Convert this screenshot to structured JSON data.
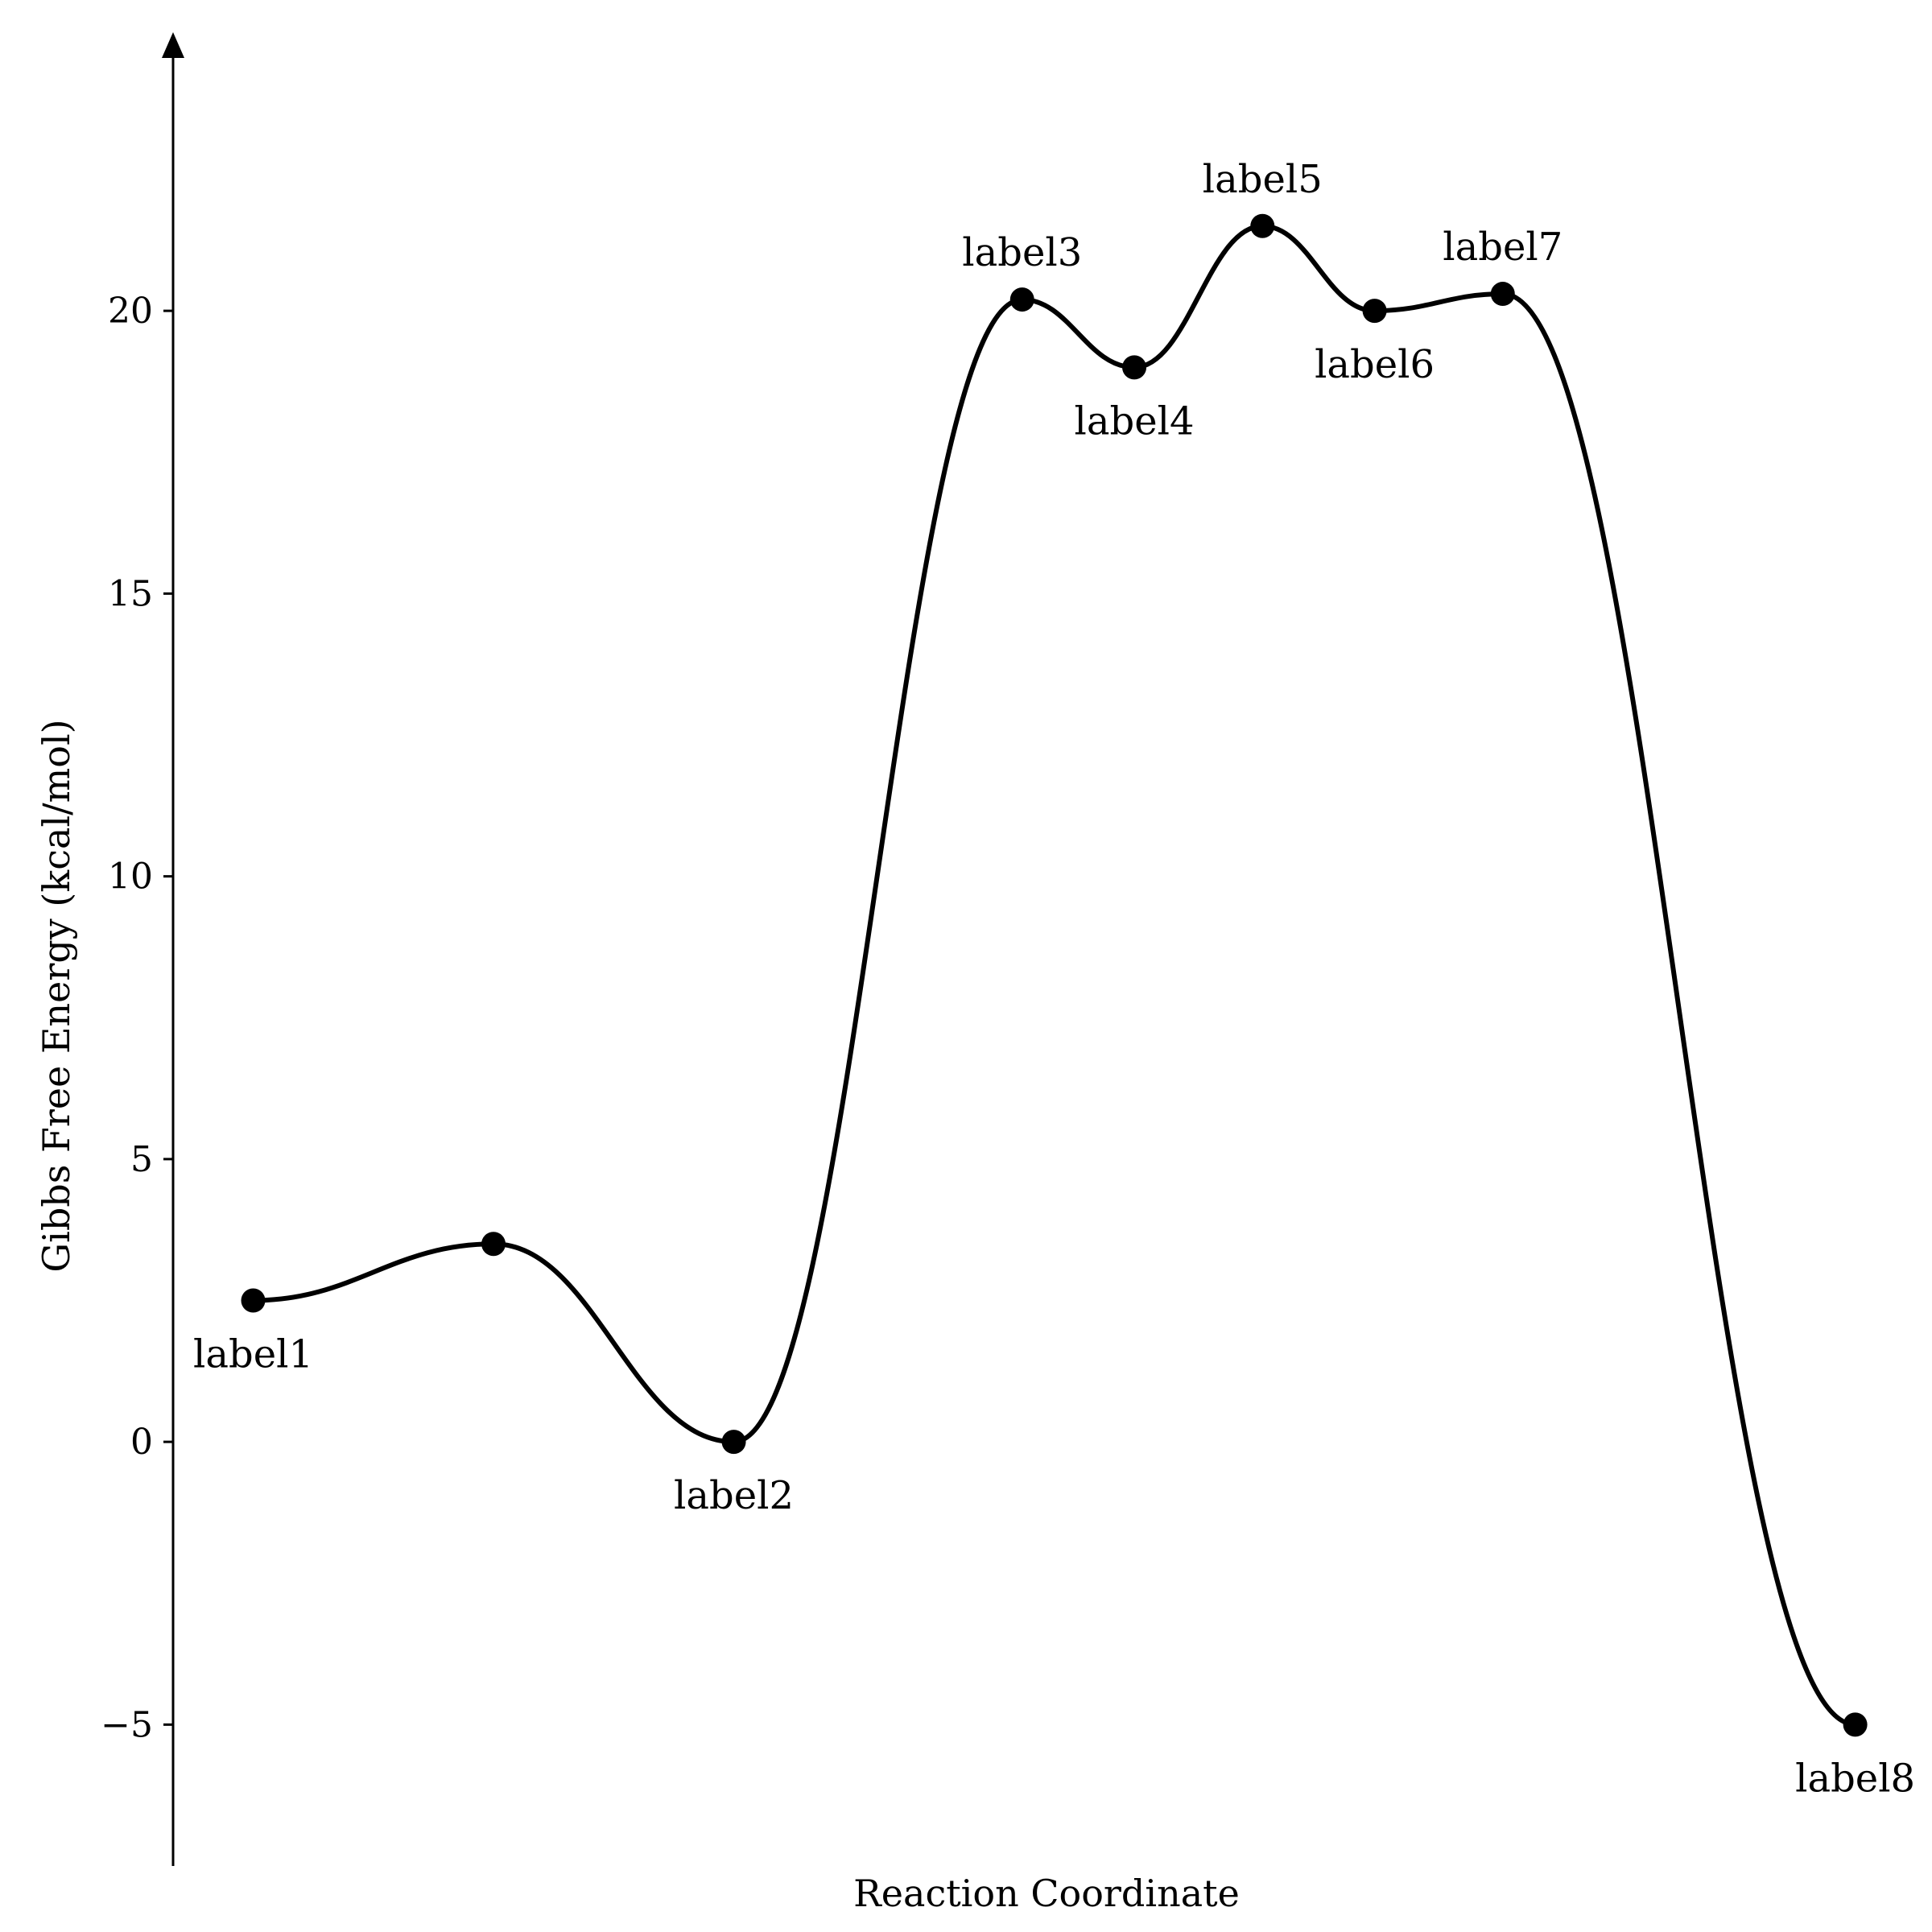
{
  "chart_data": {
    "type": "line",
    "title": "",
    "xlabel": "Reaction Coordinate",
    "ylabel": "Gibbs Free Energy (kcal/mol)",
    "ylim": [
      -7.5,
      24.5
    ],
    "yticks": [
      -5,
      0,
      5,
      10,
      15,
      20
    ],
    "ytick_labels": [
      "−5",
      "0",
      "5",
      "10",
      "15",
      "20"
    ],
    "x_ticks_shown": false,
    "grid": false,
    "legend": "none",
    "line_color": "#000000",
    "x_range": [
      0.5,
      10.6
    ],
    "points": [
      {
        "x": 1.0,
        "y": 2.5,
        "label": "label1",
        "label_position": "below"
      },
      {
        "x": 2.5,
        "y": 3.5,
        "label": "",
        "label_position": "none"
      },
      {
        "x": 4.0,
        "y": 0.0,
        "label": "label2",
        "label_position": "below"
      },
      {
        "x": 5.8,
        "y": 20.2,
        "label": "label3",
        "label_position": "above"
      },
      {
        "x": 6.5,
        "y": 19.0,
        "label": "label4",
        "label_position": "below"
      },
      {
        "x": 7.3,
        "y": 21.5,
        "label": "label5",
        "label_position": "above"
      },
      {
        "x": 8.0,
        "y": 20.0,
        "label": "label6",
        "label_position": "below"
      },
      {
        "x": 8.8,
        "y": 20.3,
        "label": "label7",
        "label_position": "above"
      },
      {
        "x": 11.0,
        "y": -5.0,
        "label": "label8",
        "label_position": "below"
      }
    ]
  }
}
